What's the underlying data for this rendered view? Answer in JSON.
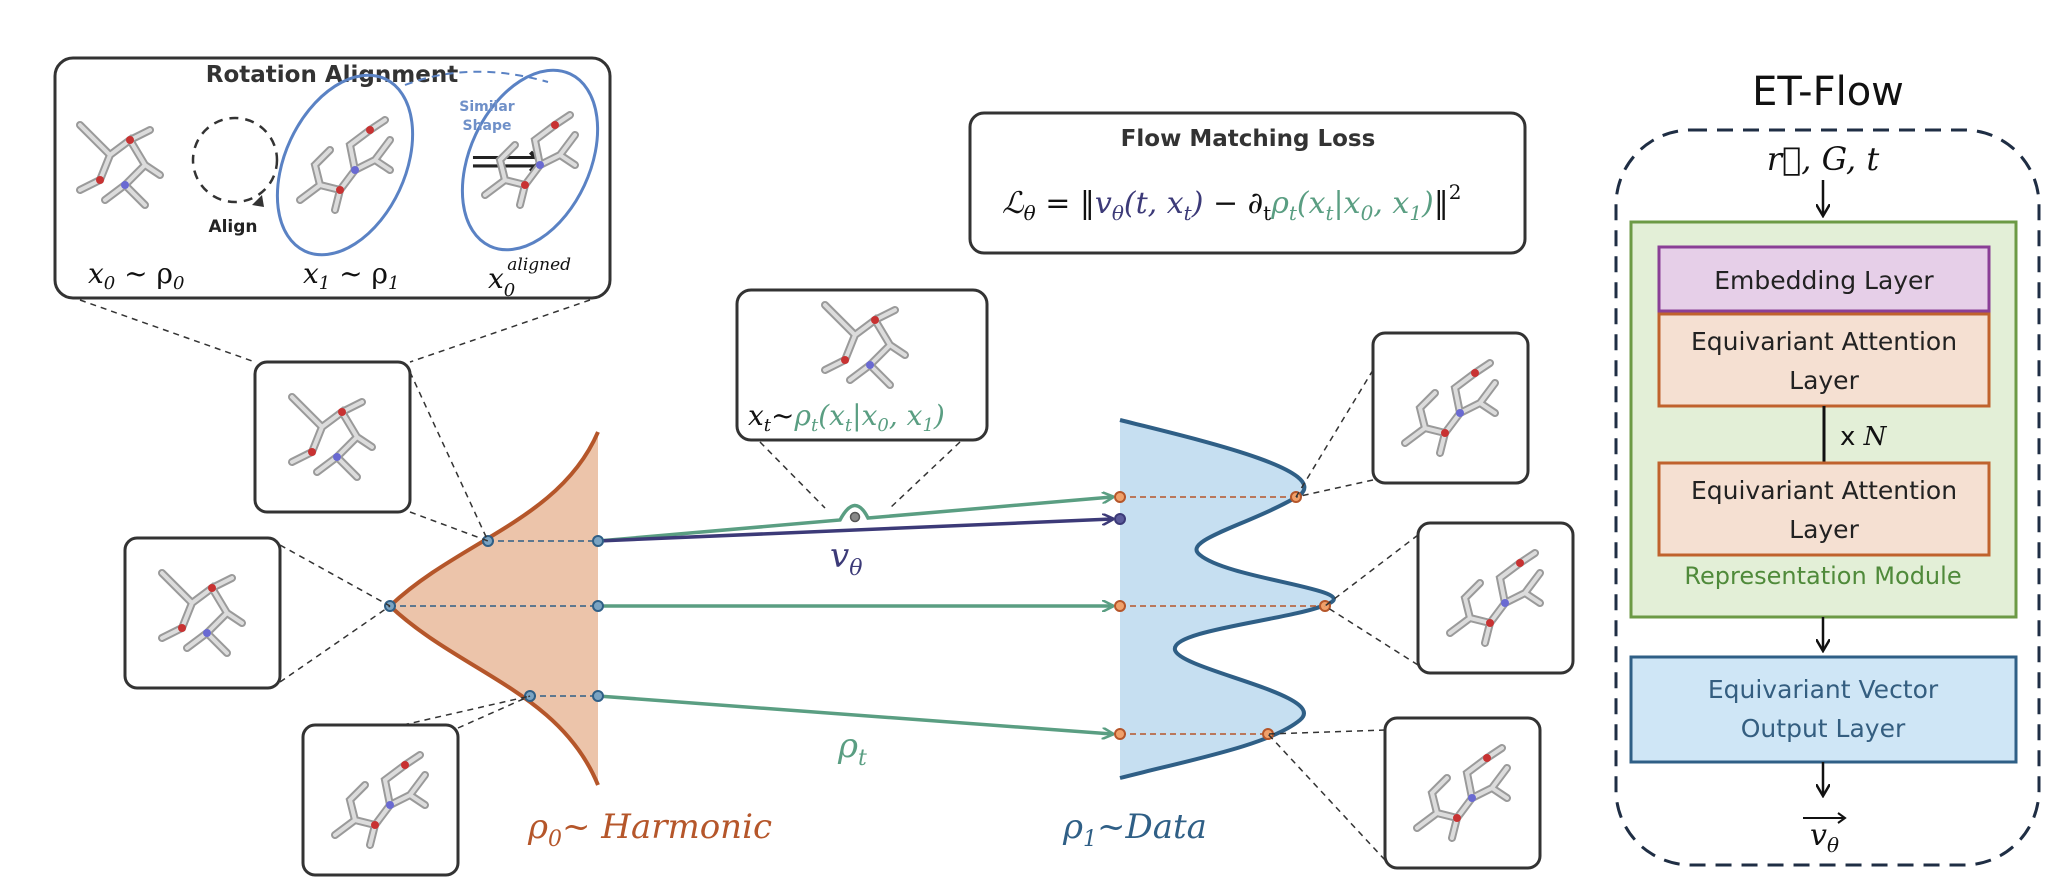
{
  "rotation_alignment": {
    "title": "Rotation Alignment",
    "align_label": "Align",
    "similar_shape_line1": "Similar",
    "similar_shape_line2": "Shape",
    "x0_label": "x",
    "x0_sub": "0",
    "x0_rel": " ~ ρ",
    "x0_rel_sub": "0",
    "x1_label": "x",
    "x1_sub": "1",
    "x1_rel": " ~ ρ",
    "x1_rel_sub": "1",
    "x0_aligned_label": "x",
    "x0_aligned_sub": "0",
    "x0_aligned_sup": "aligned"
  },
  "flow_matching": {
    "title": "Flow Matching Loss",
    "loss_lhs": "ℒ",
    "loss_lhs_sub": "θ",
    "loss_eq": " = ‖",
    "loss_v": "v",
    "loss_v_sub": "θ",
    "loss_v_args": "(t, x",
    "loss_v_args_sub": "t",
    "loss_v_close": ")",
    "loss_minus": " − ∂",
    "loss_minus_sub": "t",
    "loss_rho": "ρ",
    "loss_rho_sub": "t",
    "loss_rho_args": "(x",
    "loss_rho_args_sub": "t",
    "loss_rho_cond": "|x",
    "loss_rho_cond_sub": "0",
    "loss_rho_comma": ", x",
    "loss_rho_comma_sub": "1",
    "loss_rho_close": ")",
    "loss_end": "‖",
    "loss_sup": "2"
  },
  "xt_label": {
    "x": "x",
    "x_sub": "t",
    "tilde": "~",
    "rho": "ρ",
    "rho_sub": "t",
    "args": "(x",
    "args_sub": "t",
    "cond": "|x",
    "cond_sub": "0",
    "comma": ", x",
    "comma_sub": "1",
    "close": ")"
  },
  "flow_labels": {
    "v_theta": "v",
    "v_theta_sub": "θ",
    "rho_t": "ρ",
    "rho_t_sub": "t"
  },
  "distributions": {
    "harmonic_rho": "ρ",
    "harmonic_sub": "0",
    "harmonic_text": "~ Harmonic",
    "data_rho": "ρ",
    "data_sub": "1",
    "data_text": "~Data"
  },
  "et_flow": {
    "title": "ET-Flow",
    "input_label": "r⃗, G, t",
    "embedding_layer": "Embedding Layer",
    "equivariant_attention_line1": "Equivariant Attention",
    "equivariant_attention_line2": "Layer",
    "repeat_prefix": "x ",
    "repeat_n": "N",
    "representation_module": "Representation Module",
    "output_layer_line1": "Equivariant Vector",
    "output_layer_line2": "Output Layer",
    "output_label": "v",
    "output_label_sub": "θ"
  },
  "colors": {
    "harmonic": "#b5562a",
    "harmonic_fill": "#ecc4aa",
    "data": "#2f5f86",
    "data_fill": "#c6dff1",
    "flow_green": "#5a9e82",
    "v_theta": "#3c3a78",
    "embedding_fill": "#e6cfe8",
    "embedding_border": "#8a3f96",
    "attention_fill": "#f5e0d2",
    "attention_border": "#c0622d",
    "module_fill": "#e3efd7",
    "module_border": "#6c9a45",
    "module_text": "#4f8a3a",
    "output_fill": "#cfe6f6",
    "output_border": "#2f5f86",
    "output_text": "#345e80",
    "align_ellipse": "#5a82c4"
  }
}
